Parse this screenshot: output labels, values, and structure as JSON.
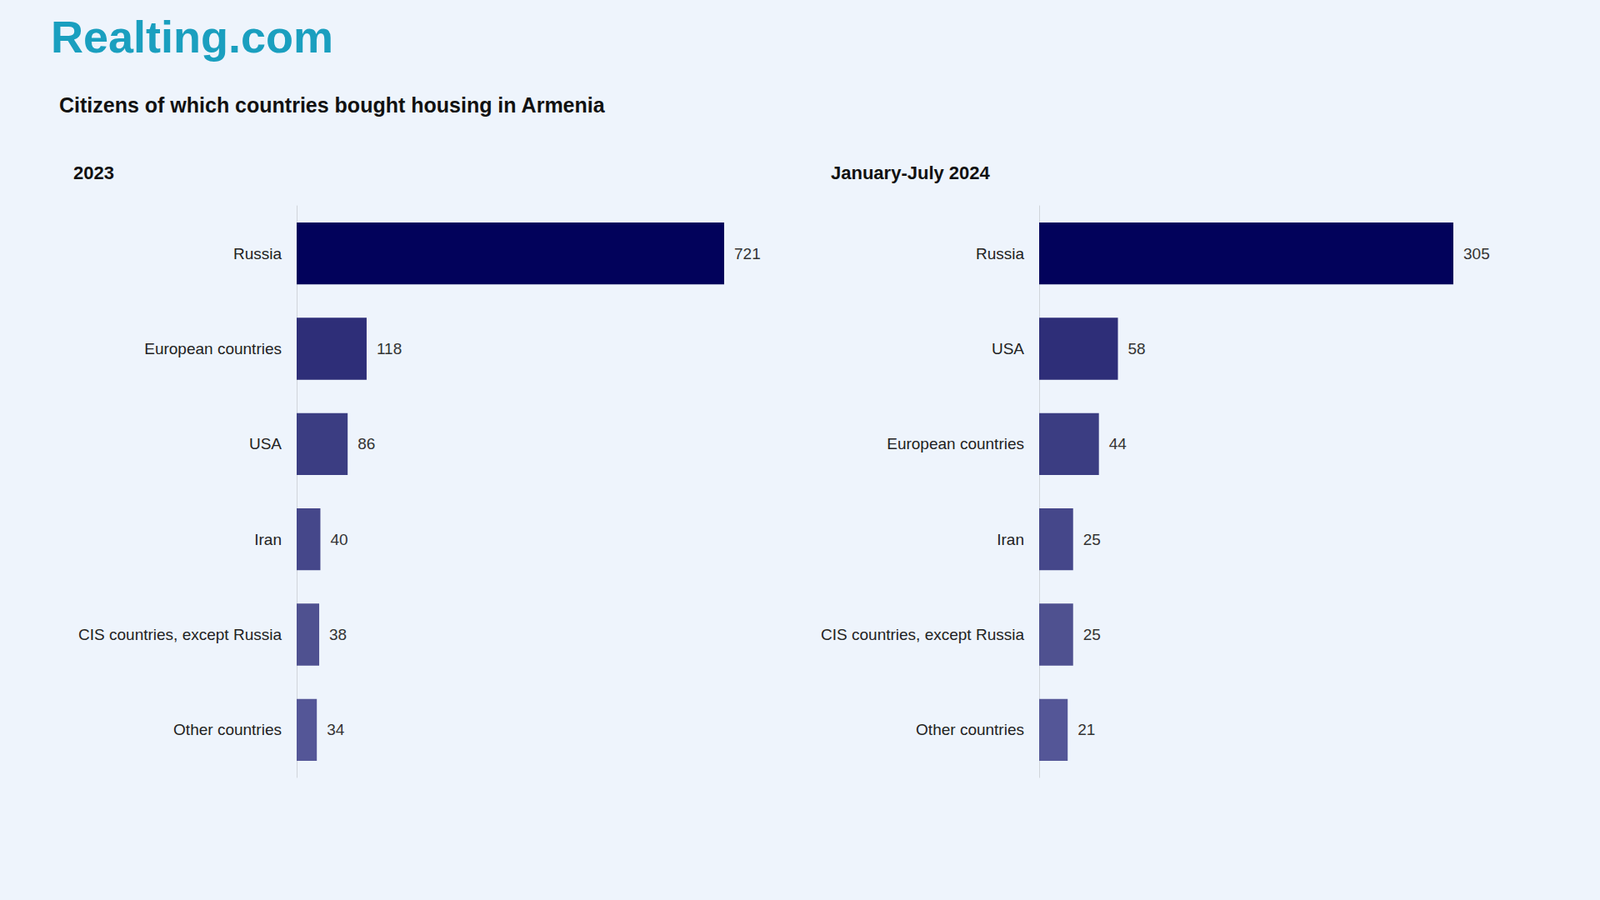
{
  "brand": "Realting.com",
  "title": "Citizens of which countries bought housing in Armenia",
  "chart_data": [
    {
      "type": "bar",
      "title": "2023",
      "orientation": "horizontal",
      "categories": [
        "Russia",
        "European countries",
        "USA",
        "Iran",
        "CIS countries, except Russia",
        "Other countries"
      ],
      "values": [
        721,
        118,
        86,
        40,
        38,
        34
      ],
      "colors": [
        "#02025b",
        "#2e2e78",
        "#3b3d82",
        "#45478a",
        "#4f5190",
        "#545697"
      ],
      "xlim": [
        0,
        721
      ],
      "grid": false,
      "data_labels": true,
      "tick_labels": "y"
    },
    {
      "type": "bar",
      "title": "January-July 2024",
      "orientation": "horizontal",
      "categories": [
        "Russia",
        "USA",
        "European countries",
        "Iran",
        "CIS countries, except Russia",
        "Other countries"
      ],
      "values": [
        305,
        58,
        44,
        25,
        25,
        21
      ],
      "colors": [
        "#02025b",
        "#2e2e78",
        "#3b3d82",
        "#45478a",
        "#4f5190",
        "#545697"
      ],
      "xlim": [
        0,
        305
      ],
      "grid": false,
      "data_labels": true,
      "tick_labels": "y"
    }
  ]
}
